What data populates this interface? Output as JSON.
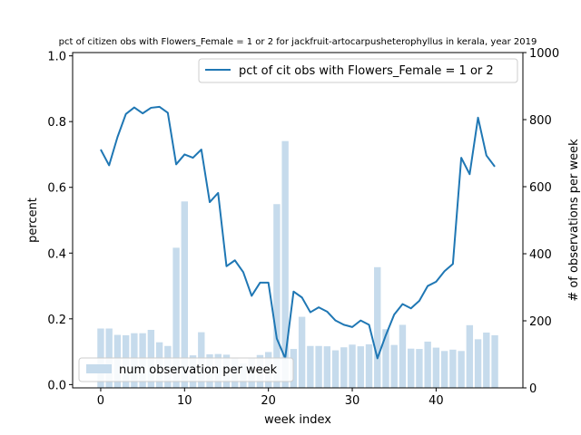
{
  "chart_data": {
    "type": "bar+line",
    "title": "pct of citizen obs with Flowers_Female = 1 or 2 for jackfruit-artocarpusheterophyllus in kerala, year 2019",
    "xlabel": "week index",
    "ylabel_left": "percent",
    "ylabel_right": "# of observations per week",
    "xlim": [
      -3.35,
      50.35
    ],
    "ylim_left": [
      -0.01,
      1.01
    ],
    "ylim_right": [
      0,
      1000
    ],
    "x_ticks": [
      0,
      10,
      20,
      30,
      40
    ],
    "y_ticks_left": [
      "0.0",
      "0.2",
      "0.4",
      "0.6",
      "0.8",
      "1.0"
    ],
    "y_ticks_right": [
      "0",
      "200",
      "400",
      "600",
      "800",
      "1000"
    ],
    "grid": false,
    "x": [
      0,
      1,
      2,
      3,
      4,
      5,
      6,
      7,
      8,
      9,
      10,
      11,
      12,
      13,
      14,
      15,
      16,
      17,
      18,
      19,
      20,
      21,
      22,
      23,
      24,
      25,
      26,
      27,
      28,
      29,
      30,
      31,
      32,
      33,
      34,
      35,
      36,
      37,
      38,
      39,
      40,
      41,
      42,
      43,
      44,
      45,
      46,
      47
    ],
    "series": [
      {
        "name": "num observation per week",
        "kind": "bar",
        "axis": "right",
        "color": "#c6dbec",
        "values": [
          177,
          177,
          158,
          157,
          163,
          163,
          173,
          136,
          125,
          418,
          556,
          97,
          166,
          100,
          101,
          99,
          90,
          73,
          88,
          98,
          107,
          548,
          736,
          116,
          212,
          125,
          125,
          124,
          112,
          121,
          129,
          124,
          130,
          360,
          175,
          128,
          188,
          117,
          116,
          138,
          120,
          110,
          114,
          110,
          187,
          145,
          165,
          157
        ]
      },
      {
        "name": "pct of cit obs with Flowers_Female = 1 or 2",
        "kind": "line",
        "axis": "left",
        "color": "#1f77b4",
        "values": [
          0.715,
          0.667,
          0.753,
          0.823,
          0.843,
          0.825,
          0.842,
          0.845,
          0.827,
          0.67,
          0.7,
          0.69,
          0.715,
          0.555,
          0.583,
          0.36,
          0.378,
          0.342,
          0.27,
          0.31,
          0.31,
          0.14,
          0.08,
          0.283,
          0.265,
          0.22,
          0.235,
          0.222,
          0.195,
          0.182,
          0.175,
          0.195,
          0.182,
          0.08,
          0.15,
          0.213,
          0.245,
          0.232,
          0.255,
          0.3,
          0.313,
          0.345,
          0.367,
          0.69,
          0.64,
          0.812,
          0.697,
          0.663
        ]
      }
    ],
    "legend_line_position": "top-right",
    "legend_bar_position": "bottom-left"
  }
}
